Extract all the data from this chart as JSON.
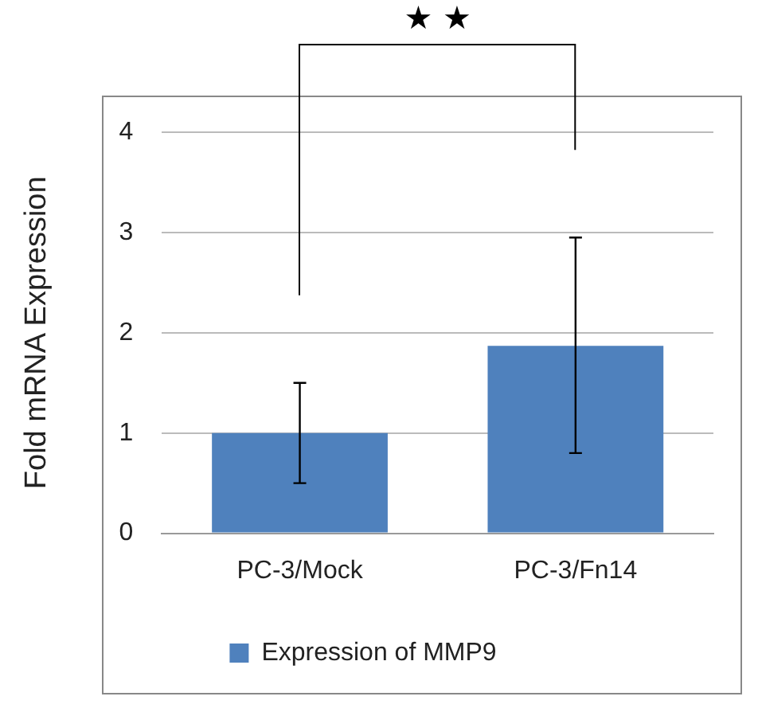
{
  "chart_data": {
    "type": "bar",
    "ylabel": "Fold mRNA Expression",
    "categories": [
      "PC-3/Mock",
      "PC-3/Fn14"
    ],
    "series": [
      {
        "name": "Expression of MMP9",
        "color": "#4f81bd",
        "values": [
          1,
          1.87
        ],
        "errors": [
          [
            0.5,
            1.5
          ],
          [
            0.8,
            2.95
          ]
        ]
      }
    ],
    "ylim": [
      0,
      4
    ],
    "yticks": [
      0,
      1,
      2,
      3,
      4
    ],
    "grid": "y",
    "legend": "bottom",
    "annotations": [
      "★ ★"
    ]
  }
}
